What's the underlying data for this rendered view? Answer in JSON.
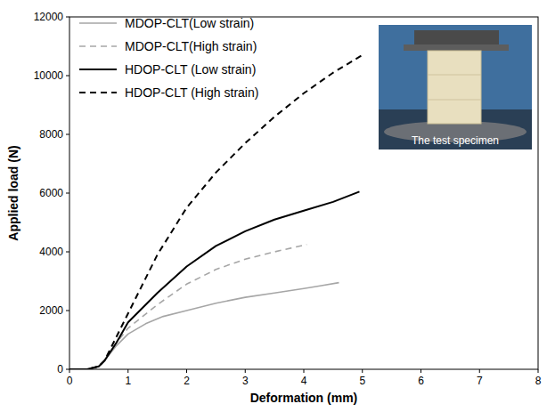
{
  "chart_data": {
    "type": "line",
    "x_label": "Deformation (mm)",
    "y_label": "Applied load (N)",
    "annotation": "The test specimen",
    "xlim": [
      0,
      8
    ],
    "xticks": [
      0,
      1,
      2,
      3,
      4,
      5,
      6,
      7,
      8
    ],
    "ylim": [
      0,
      12000
    ],
    "yticks": [
      0,
      2000,
      4000,
      6000,
      8000,
      10000,
      12000
    ],
    "grid": false,
    "legend": "upper left",
    "series": [
      {
        "name": "MDOP-CLT(Low strain)",
        "color": "#a6a6a6",
        "line_style": "solid",
        "x": [
          0,
          0.3,
          0.5,
          0.6,
          0.8,
          1,
          1.3,
          1.6,
          2,
          2.5,
          3,
          3.5,
          4,
          4.3,
          4.6
        ],
        "values": [
          0,
          0,
          100,
          300,
          800,
          1200,
          1550,
          1800,
          2000,
          2250,
          2450,
          2600,
          2750,
          2850,
          2950
        ]
      },
      {
        "name": "MDOP-CLT(High strain)",
        "color": "#a6a6a6",
        "line_style": "dashed",
        "x": [
          0,
          0.3,
          0.5,
          0.6,
          0.8,
          1,
          1.5,
          2,
          2.5,
          3,
          3.5,
          4.05
        ],
        "values": [
          0,
          0,
          100,
          300,
          900,
          1400,
          2200,
          2900,
          3400,
          3750,
          4000,
          4250
        ]
      },
      {
        "name": "HDOP-CLT (Low strain)",
        "color": "#000000",
        "line_style": "solid",
        "x": [
          0,
          0.3,
          0.5,
          0.6,
          0.8,
          1,
          1.5,
          2,
          2.5,
          3,
          3.5,
          4,
          4.5,
          4.95
        ],
        "values": [
          0,
          0,
          100,
          300,
          900,
          1600,
          2600,
          3500,
          4200,
          4700,
          5100,
          5400,
          5700,
          6050
        ]
      },
      {
        "name": "HDOP-CLT (High strain)",
        "color": "#000000",
        "line_style": "dashed",
        "x": [
          0,
          0.3,
          0.5,
          0.6,
          0.8,
          1,
          1.5,
          2,
          2.5,
          3,
          3.5,
          4,
          4.5,
          5
        ],
        "values": [
          0,
          0,
          100,
          300,
          1100,
          1900,
          3900,
          5500,
          6700,
          7700,
          8600,
          9400,
          10100,
          10700
        ]
      }
    ]
  }
}
